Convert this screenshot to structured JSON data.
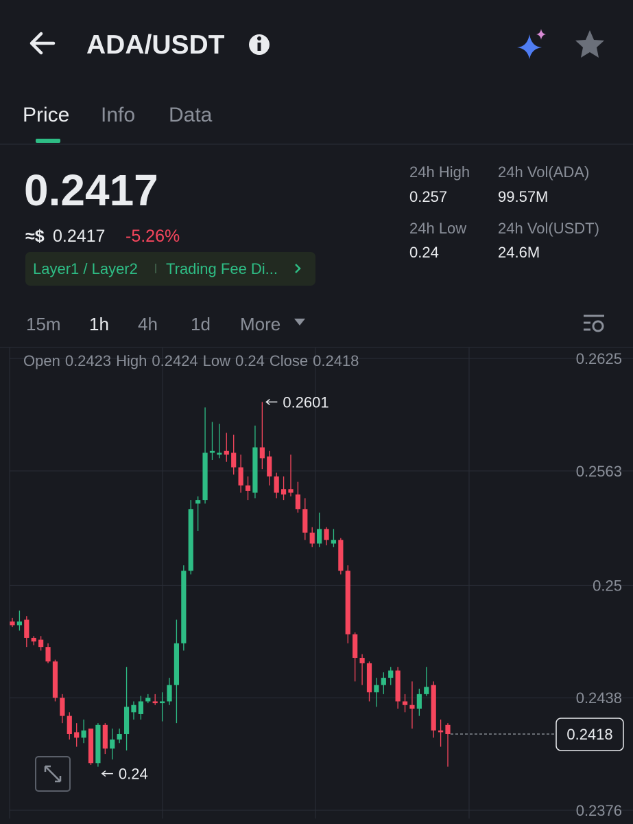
{
  "header": {
    "title": "ADA/USDT"
  },
  "tabs": [
    "Price",
    "Info",
    "Data"
  ],
  "price": {
    "last": "0.2417",
    "usd_prefix": "≈$",
    "usd": "0.2417",
    "change": "-5.26%"
  },
  "tags": [
    "Layer1 / Layer2",
    "Trading Fee Di..."
  ],
  "stats": [
    {
      "label": "24h High",
      "value": "0.257"
    },
    {
      "label": "24h Vol(ADA)",
      "value": "99.57M"
    },
    {
      "label": "24h Low",
      "value": "0.24"
    },
    {
      "label": "24h Vol(USDT)",
      "value": "24.6M"
    }
  ],
  "intervals": [
    "15m",
    "1h",
    "4h",
    "1d",
    "More"
  ],
  "ohlc_labels": [
    "Open",
    "High",
    "Low",
    "Close"
  ],
  "chart_data": {
    "type": "candlestick",
    "ylim": [
      0.2376,
      0.2625
    ],
    "yticks": [
      0.2376,
      0.2438,
      0.25,
      0.2563,
      0.2625
    ],
    "grid": true,
    "up_color": "#2ebd85",
    "down_color": "#f6465d",
    "open": [
      0.248,
      0.2478,
      0.2481,
      0.2471,
      0.247,
      0.2466,
      0.2458,
      0.2438,
      0.2428,
      0.2419,
      0.2416,
      0.2421,
      0.2402,
      0.2423,
      0.241,
      0.2415,
      0.2418,
      0.243,
      0.2429,
      0.2436,
      0.2436,
      0.2435,
      0.2436,
      0.2445,
      0.2468,
      0.2508,
      0.2545,
      0.2547,
      0.2573,
      0.2572,
      0.2574,
      0.2573,
      0.2565,
      0.2555,
      0.2551,
      0.2576,
      0.2571,
      0.256,
      0.2553,
      0.2553,
      0.255,
      0.2542,
      0.2529,
      0.2523,
      0.2531,
      0.2523,
      0.2525,
      0.2508,
      0.2473,
      0.246,
      0.2457,
      0.2441,
      0.2445,
      0.2449,
      0.2453,
      0.2436,
      0.2434,
      0.2432,
      0.244,
      0.2445,
      0.242,
      0.2423
    ],
    "high": [
      0.2482,
      0.2486,
      0.2483,
      0.2472,
      0.2472,
      0.2468,
      0.2459,
      0.244,
      0.243,
      0.2424,
      0.2426,
      0.2421,
      0.2424,
      0.2424,
      0.2421,
      0.2421,
      0.2455,
      0.2436,
      0.2439,
      0.244,
      0.244,
      0.2441,
      0.2449,
      0.2481,
      0.2511,
      0.2547,
      0.2549,
      0.2598,
      0.259,
      0.2589,
      0.2584,
      0.2583,
      0.2572,
      0.256,
      0.2588,
      0.2601,
      0.2574,
      0.2562,
      0.256,
      0.2572,
      0.2557,
      0.2548,
      0.2532,
      0.254,
      0.2532,
      0.2531,
      0.2526,
      0.2511,
      0.2474,
      0.2462,
      0.2458,
      0.2449,
      0.2452,
      0.2455,
      0.2455,
      0.244,
      0.2447,
      0.2443,
      0.2455,
      0.2447,
      0.2426,
      0.2424
    ],
    "low": [
      0.2477,
      0.2475,
      0.2466,
      0.2467,
      0.2464,
      0.2457,
      0.2436,
      0.2424,
      0.2415,
      0.2411,
      0.2413,
      0.2401,
      0.24,
      0.2407,
      0.2404,
      0.2413,
      0.2409,
      0.2426,
      0.2426,
      0.2435,
      0.2434,
      0.2425,
      0.2434,
      0.2424,
      0.2464,
      0.2506,
      0.253,
      0.2545,
      0.2569,
      0.257,
      0.2568,
      0.2561,
      0.2551,
      0.2547,
      0.2548,
      0.2564,
      0.2555,
      0.2548,
      0.2547,
      0.2549,
      0.254,
      0.2525,
      0.2521,
      0.2521,
      0.2522,
      0.2521,
      0.2506,
      0.2468,
      0.2447,
      0.2445,
      0.2436,
      0.2433,
      0.244,
      0.2445,
      0.2432,
      0.243,
      0.2421,
      0.2428,
      0.2439,
      0.2416,
      0.2411,
      0.24
    ],
    "close": [
      0.2478,
      0.248,
      0.2471,
      0.2469,
      0.2466,
      0.2458,
      0.2438,
      0.2428,
      0.2418,
      0.2416,
      0.242,
      0.2402,
      0.2423,
      0.241,
      0.2415,
      0.2418,
      0.2433,
      0.2434,
      0.2436,
      0.2438,
      0.2435,
      0.2436,
      0.2445,
      0.2468,
      0.2508,
      0.2542,
      0.2547,
      0.2573,
      0.2574,
      0.2573,
      0.2572,
      0.2565,
      0.2555,
      0.2552,
      0.2576,
      0.257,
      0.256,
      0.2551,
      0.255,
      0.2551,
      0.2542,
      0.2529,
      0.2523,
      0.2531,
      0.2525,
      0.2525,
      0.2508,
      0.2473,
      0.246,
      0.2457,
      0.2441,
      0.2445,
      0.2449,
      0.2453,
      0.2436,
      0.2434,
      0.2432,
      0.244,
      0.2444,
      0.242,
      0.2419,
      0.2418
    ]
  }
}
